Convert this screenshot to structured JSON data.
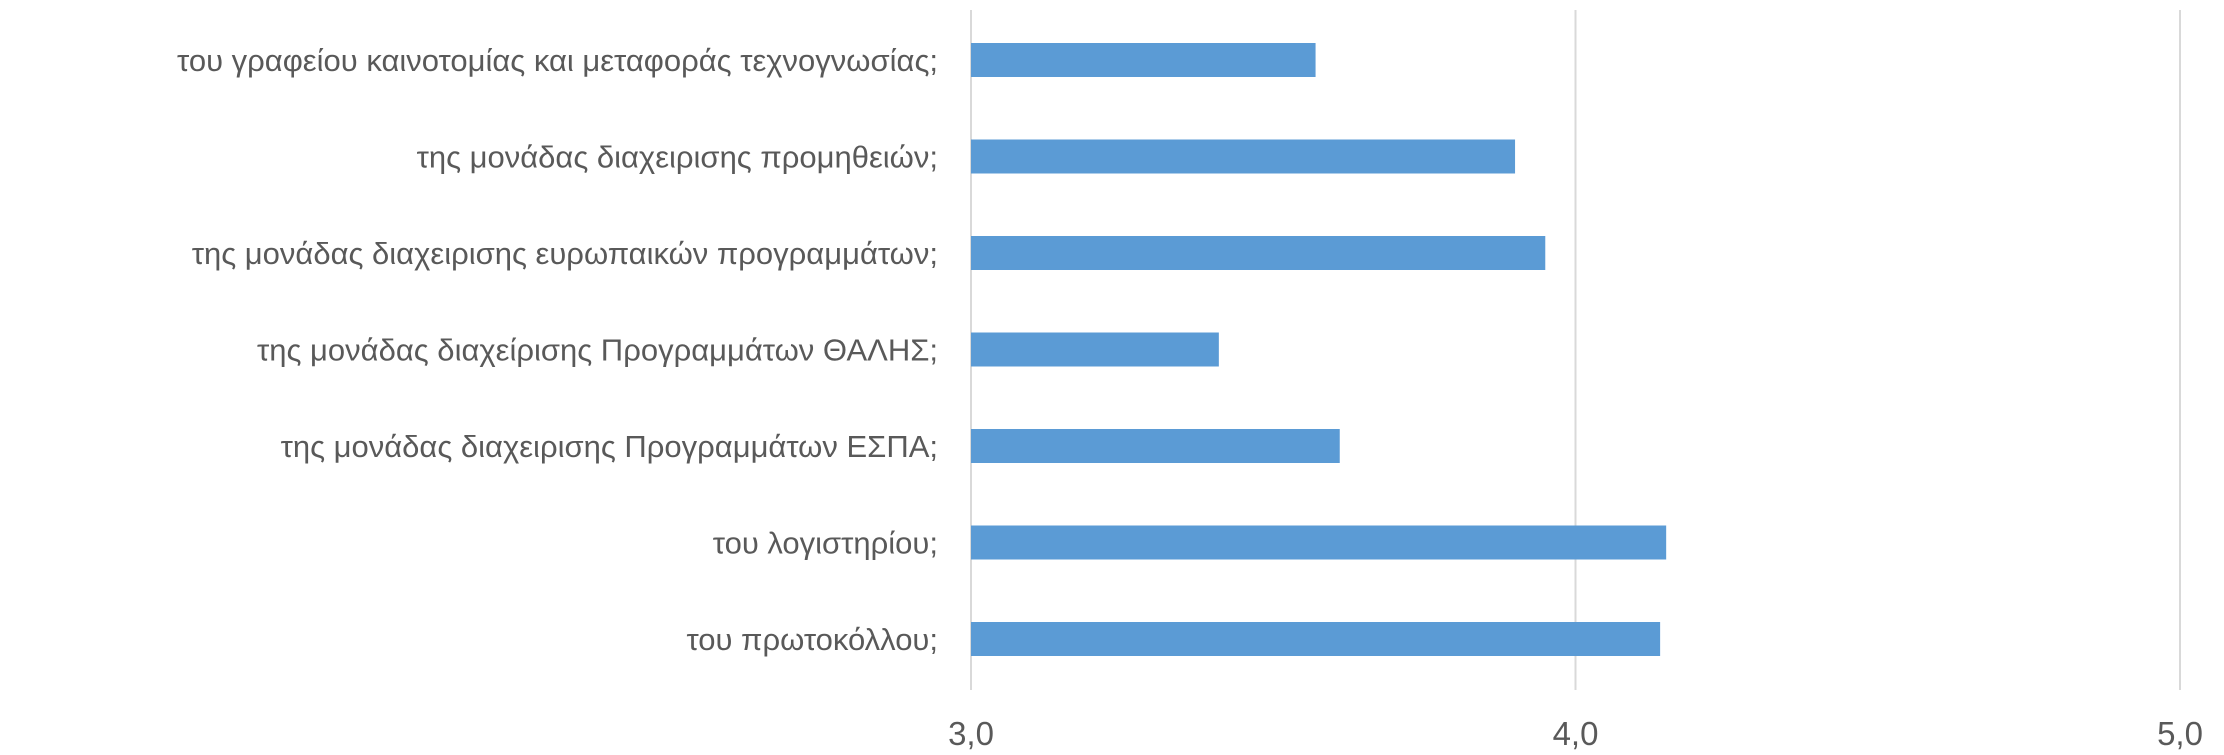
{
  "chart_data": {
    "type": "bar",
    "orientation": "horizontal",
    "categories": [
      "του γραφείου καινοτομίας και μεταφοράς τεχνογνωσίας;",
      "της μονάδας διαχειρισης προμηθειών;",
      "της μονάδας διαχειρισης ευρωπαικών προγραμμάτων;",
      "της μονάδας διαχείρισης Προγραμμάτων ΘΑΛΗΣ;",
      "της μονάδας διαχειρισης Προγραμμάτων ΕΣΠΑ;",
      "του λογιστηρίου;",
      "του πρωτοκόλλου;"
    ],
    "values": [
      3.57,
      3.9,
      3.95,
      3.41,
      3.61,
      4.15,
      4.14
    ],
    "xlim": [
      3.0,
      5.0
    ],
    "ticks": [
      3.0,
      4.0,
      5.0
    ],
    "tick_labels": [
      "3,0",
      "4,0",
      "5,0"
    ],
    "grid": true,
    "bar_color": "#5B9BD5",
    "grid_color": "#D9D9D9",
    "text_color": "#595959"
  }
}
